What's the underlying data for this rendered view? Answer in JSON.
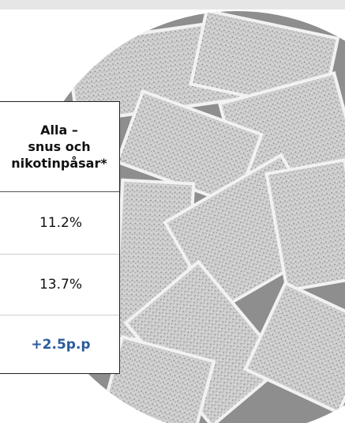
{
  "table": {
    "header": [
      "Alla –",
      "snus och",
      "nikotinpåsar*"
    ],
    "rows": [
      [
        "11.2%"
      ],
      [
        "13.7%"
      ],
      [
        "+2.5p.p"
      ]
    ]
  }
}
